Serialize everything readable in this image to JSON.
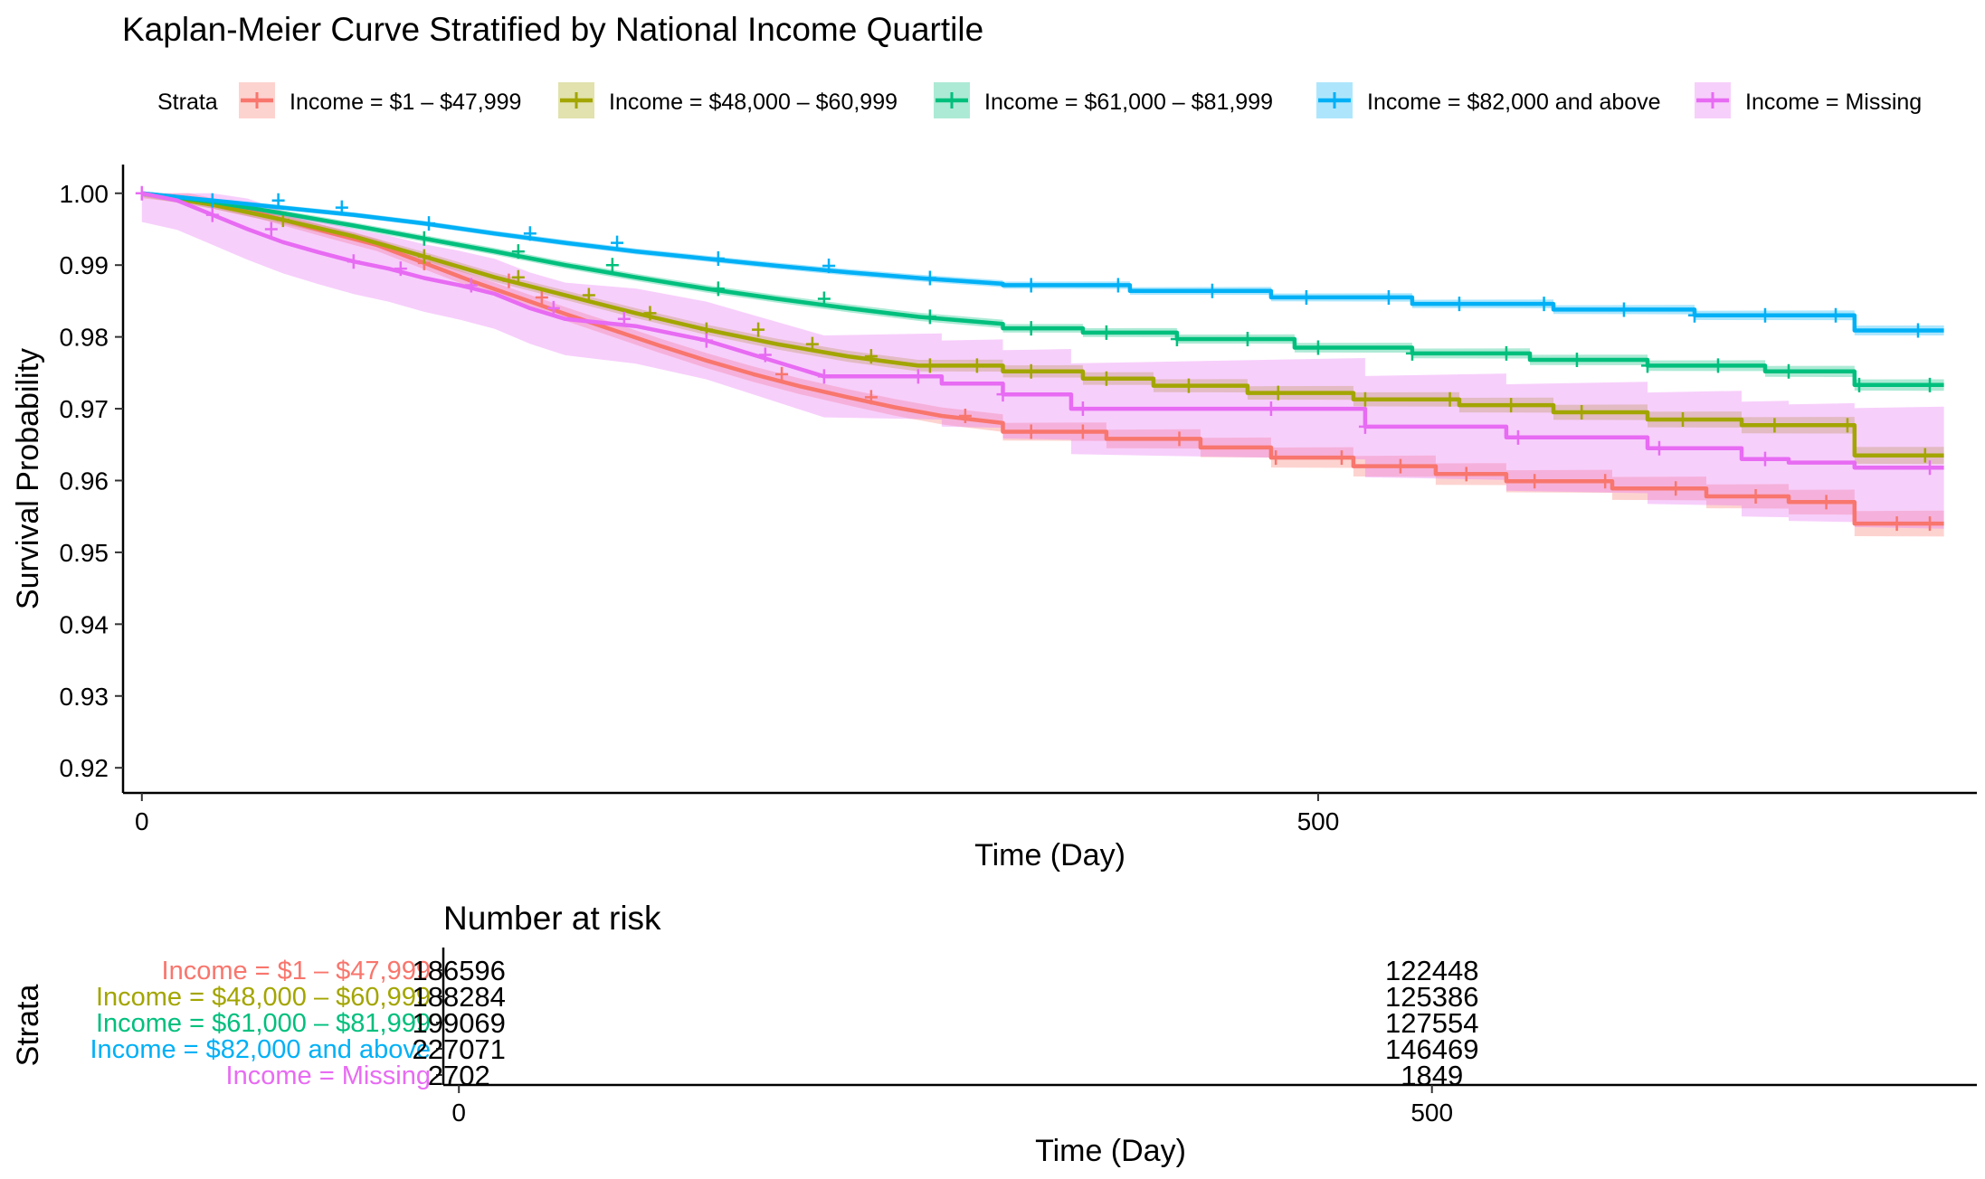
{
  "chart_data": [
    {
      "type": "line",
      "subtype": "kaplan-meier",
      "title": "Kaplan-Meier Curve Stratified by National Income Quartile",
      "xlabel": "Time (Day)",
      "ylabel": "Survival Probability",
      "xlim": [
        -8,
        780
      ],
      "ylim": [
        0.9165,
        1.004
      ],
      "x_ticks": [
        0,
        500
      ],
      "y_ticks": [
        1.0,
        0.99,
        0.98,
        0.97,
        0.96,
        0.95,
        0.94,
        0.93,
        0.92
      ],
      "legend_title": "Strata",
      "legend_position": "top",
      "grid": false,
      "confidence_bands": true,
      "censor_marks": true,
      "series": [
        {
          "name": "Income = $1 – $47,999",
          "color": "#F8766D",
          "points": [
            [
              0,
              1.0
            ],
            [
              20,
              0.9993
            ],
            [
              50,
              0.9972
            ],
            [
              80,
              0.9945
            ],
            [
              100,
              0.9928
            ],
            [
              120,
              0.9903
            ],
            [
              140,
              0.9878
            ],
            [
              160,
              0.9855
            ],
            [
              180,
              0.9832
            ],
            [
              200,
              0.981
            ],
            [
              220,
              0.9788
            ],
            [
              240,
              0.9767
            ],
            [
              260,
              0.9748
            ],
            [
              280,
              0.9731
            ],
            [
              300,
              0.9716
            ],
            [
              320,
              0.9702
            ],
            [
              340,
              0.969
            ],
            [
              366,
              0.968
            ],
            [
              366,
              0.9668
            ],
            [
              410,
              0.9668
            ],
            [
              410,
              0.9658
            ],
            [
              450,
              0.9658
            ],
            [
              450,
              0.9646
            ],
            [
              480,
              0.9646
            ],
            [
              480,
              0.9632
            ],
            [
              515,
              0.9632
            ],
            [
              515,
              0.962
            ],
            [
              550,
              0.962
            ],
            [
              550,
              0.9609
            ],
            [
              580,
              0.9609
            ],
            [
              580,
              0.9599
            ],
            [
              625,
              0.9599
            ],
            [
              625,
              0.9589
            ],
            [
              665,
              0.9589
            ],
            [
              665,
              0.9578
            ],
            [
              700,
              0.9578
            ],
            [
              700,
              0.957
            ],
            [
              728,
              0.957
            ],
            [
              728,
              0.954
            ],
            [
              766,
              0.954
            ]
          ],
          "band": [
            0.0007,
            0.0018
          ],
          "censor": [
            120,
            156,
            170,
            272,
            310,
            350,
            378,
            400,
            441,
            482,
            510,
            535,
            563,
            592,
            622,
            652,
            686,
            716,
            746,
            760
          ]
        },
        {
          "name": "Income = $48,000 – $60,999",
          "color": "#A3A500",
          "points": [
            [
              0,
              1.0
            ],
            [
              30,
              0.9984
            ],
            [
              60,
              0.9963
            ],
            [
              90,
              0.994
            ],
            [
              120,
              0.9912
            ],
            [
              150,
              0.9883
            ],
            [
              180,
              0.9858
            ],
            [
              210,
              0.9833
            ],
            [
              240,
              0.981
            ],
            [
              270,
              0.979
            ],
            [
              300,
              0.9773
            ],
            [
              330,
              0.976
            ],
            [
              366,
              0.976
            ],
            [
              366,
              0.9752
            ],
            [
              400,
              0.9752
            ],
            [
              400,
              0.9742
            ],
            [
              430,
              0.9742
            ],
            [
              430,
              0.9732
            ],
            [
              470,
              0.9732
            ],
            [
              470,
              0.9722
            ],
            [
              515,
              0.9722
            ],
            [
              515,
              0.9713
            ],
            [
              560,
              0.9713
            ],
            [
              560,
              0.9705
            ],
            [
              600,
              0.9705
            ],
            [
              600,
              0.9695
            ],
            [
              640,
              0.9695
            ],
            [
              640,
              0.9685
            ],
            [
              680,
              0.9685
            ],
            [
              680,
              0.9677
            ],
            [
              728,
              0.9677
            ],
            [
              728,
              0.9635
            ],
            [
              766,
              0.9635
            ]
          ],
          "band": [
            0.0005,
            0.0012
          ],
          "censor": [
            60,
            120,
            160,
            190,
            216,
            240,
            262,
            285,
            310,
            335,
            355,
            378,
            410,
            445,
            483,
            520,
            556,
            582,
            612,
            655,
            694,
            725,
            758
          ]
        },
        {
          "name": "Income = $61,000 – $81,999",
          "color": "#00BF7D",
          "points": [
            [
              0,
              1.0
            ],
            [
              30,
              0.9988
            ],
            [
              60,
              0.9972
            ],
            [
              90,
              0.9955
            ],
            [
              120,
              0.9937
            ],
            [
              150,
              0.9919
            ],
            [
              180,
              0.99
            ],
            [
              210,
              0.9883
            ],
            [
              240,
              0.9867
            ],
            [
              270,
              0.9853
            ],
            [
              300,
              0.984
            ],
            [
              330,
              0.9828
            ],
            [
              366,
              0.9818
            ],
            [
              366,
              0.9812
            ],
            [
              400,
              0.9812
            ],
            [
              400,
              0.9806
            ],
            [
              440,
              0.9806
            ],
            [
              440,
              0.9797
            ],
            [
              490,
              0.9797
            ],
            [
              490,
              0.9785
            ],
            [
              540,
              0.9785
            ],
            [
              540,
              0.9777
            ],
            [
              590,
              0.9777
            ],
            [
              590,
              0.9768
            ],
            [
              640,
              0.9768
            ],
            [
              640,
              0.976
            ],
            [
              690,
              0.976
            ],
            [
              690,
              0.9752
            ],
            [
              728,
              0.9752
            ],
            [
              728,
              0.9733
            ],
            [
              766,
              0.9733
            ]
          ],
          "band": [
            0.0004,
            0.0008
          ],
          "censor": [
            120,
            160,
            200,
            245,
            290,
            335,
            378,
            410,
            440,
            470,
            500,
            540,
            580,
            610,
            640,
            670,
            700,
            730,
            760
          ]
        },
        {
          "name": "Income = $82,000 and above",
          "color": "#00B0F6",
          "points": [
            [
              0,
              1.0
            ],
            [
              30,
              0.999
            ],
            [
              60,
              0.998
            ],
            [
              90,
              0.997
            ],
            [
              120,
              0.9958
            ],
            [
              150,
              0.9944
            ],
            [
              180,
              0.9931
            ],
            [
              210,
              0.9919
            ],
            [
              240,
              0.9909
            ],
            [
              270,
              0.9899
            ],
            [
              300,
              0.989
            ],
            [
              330,
              0.9882
            ],
            [
              366,
              0.9874
            ],
            [
              366,
              0.9872
            ],
            [
              420,
              0.9872
            ],
            [
              420,
              0.9864
            ],
            [
              480,
              0.9864
            ],
            [
              480,
              0.9855
            ],
            [
              540,
              0.9855
            ],
            [
              540,
              0.9846
            ],
            [
              600,
              0.9846
            ],
            [
              600,
              0.9838
            ],
            [
              660,
              0.9838
            ],
            [
              660,
              0.983
            ],
            [
              728,
              0.983
            ],
            [
              728,
              0.9809
            ],
            [
              766,
              0.9809
            ]
          ],
          "band": [
            0.0003,
            0.0007
          ],
          "censor": [
            30,
            58,
            85,
            122,
            165,
            202,
            245,
            292,
            335,
            378,
            415,
            455,
            495,
            530,
            560,
            596,
            630,
            660,
            690,
            720,
            755
          ]
        },
        {
          "name": "Income = Missing",
          "color": "#E76BF3",
          "points": [
            [
              0,
              1.0
            ],
            [
              15,
              0.999
            ],
            [
              30,
              0.997
            ],
            [
              45,
              0.995
            ],
            [
              60,
              0.9932
            ],
            [
              75,
              0.9918
            ],
            [
              90,
              0.9905
            ],
            [
              105,
              0.9895
            ],
            [
              120,
              0.9882
            ],
            [
              135,
              0.9872
            ],
            [
              150,
              0.986
            ],
            [
              165,
              0.984
            ],
            [
              180,
              0.9825
            ],
            [
              210,
              0.9815
            ],
            [
              240,
              0.9795
            ],
            [
              260,
              0.9775
            ],
            [
              290,
              0.9745
            ],
            [
              340,
              0.9745
            ],
            [
              340,
              0.9735
            ],
            [
              366,
              0.9735
            ],
            [
              366,
              0.972
            ],
            [
              395,
              0.972
            ],
            [
              395,
              0.97
            ],
            [
              520,
              0.97
            ],
            [
              520,
              0.9675
            ],
            [
              580,
              0.9675
            ],
            [
              580,
              0.966
            ],
            [
              640,
              0.966
            ],
            [
              640,
              0.9645
            ],
            [
              680,
              0.9645
            ],
            [
              680,
              0.963
            ],
            [
              700,
              0.963
            ],
            [
              700,
              0.9625
            ],
            [
              728,
              0.9625
            ],
            [
              728,
              0.9618
            ],
            [
              766,
              0.9618
            ]
          ],
          "band": [
            0.004,
            0.0085
          ],
          "censor": [
            0,
            30,
            55,
            90,
            110,
            140,
            175,
            205,
            240,
            265,
            290,
            330,
            366,
            400,
            480,
            520,
            585,
            645,
            690,
            760
          ]
        }
      ]
    },
    {
      "type": "table",
      "title": "Number at risk",
      "xlabel": "Time (Day)",
      "ylabel": "Strata",
      "xlim": [
        -8,
        780
      ],
      "x_ticks": [
        0,
        500
      ],
      "rows": [
        {
          "label": "Income = $1 – $47,999",
          "color": "#F8766D",
          "values": [
            186596,
            122448
          ]
        },
        {
          "label": "Income = $48,000 – $60,999",
          "color": "#A3A500",
          "values": [
            188284,
            125386
          ]
        },
        {
          "label": "Income = $61,000 – $81,999",
          "color": "#00BF7D",
          "values": [
            199069,
            127554
          ]
        },
        {
          "label": "Income = $82,000 and above",
          "color": "#00B0F6",
          "values": [
            227071,
            146469
          ]
        },
        {
          "label": "Income = Missing",
          "color": "#E76BF3",
          "values": [
            2702,
            1849
          ]
        }
      ]
    }
  ]
}
